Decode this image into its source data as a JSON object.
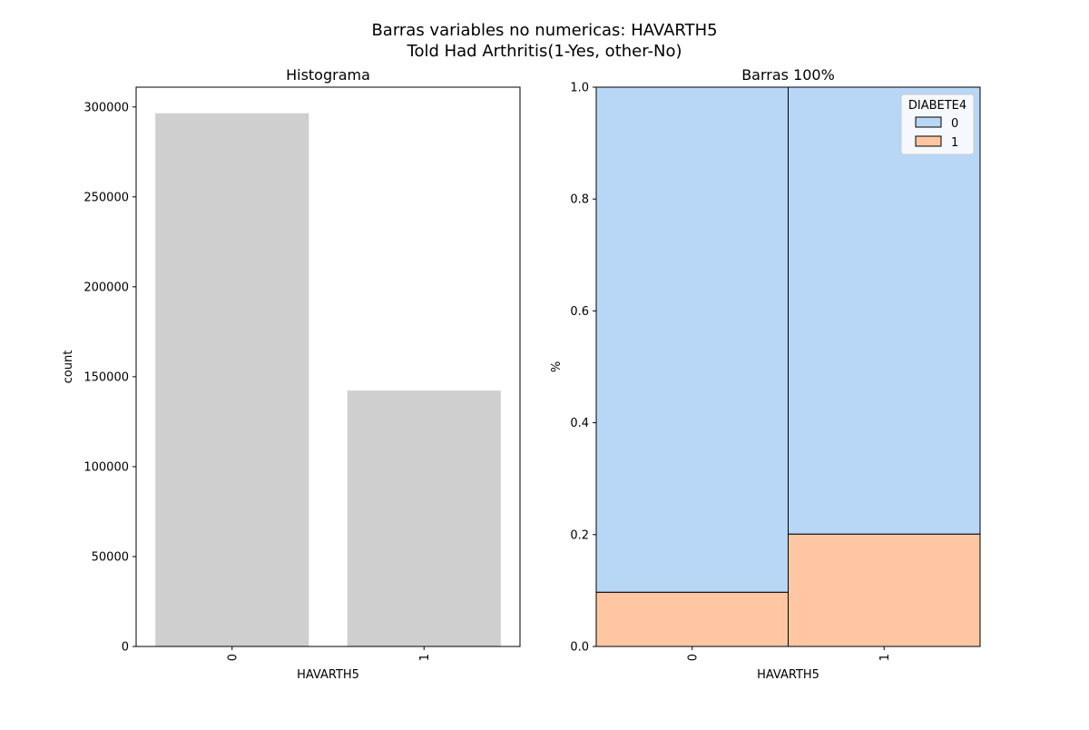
{
  "suptitle": {
    "line1": "Barras variables no numericas: HAVARTH5",
    "line2": "Told Had Arthritis(1-Yes, other-No)"
  },
  "colors": {
    "hist_bar": "#cfcfcf",
    "series_0": "#b8d6f5",
    "series_1": "#ffc6a3",
    "axis": "#000000"
  },
  "chart_data": [
    {
      "type": "bar",
      "title": "Histograma",
      "xlabel": "HAVARTH5",
      "ylabel": "count",
      "categories": [
        "0",
        "1"
      ],
      "values": [
        296500,
        142300
      ],
      "ylim": [
        0,
        311000
      ],
      "yticks": [
        0,
        50000,
        100000,
        150000,
        200000,
        250000,
        300000
      ],
      "ytick_labels": [
        "0",
        "50000",
        "100000",
        "150000",
        "200000",
        "250000",
        "300000"
      ],
      "grid": false
    },
    {
      "type": "bar",
      "stacked": "100%",
      "title": "Barras 100%",
      "xlabel": "HAVARTH5",
      "ylabel": "%",
      "categories": [
        "0",
        "1"
      ],
      "series": [
        {
          "name": "1",
          "values": [
            0.097,
            0.201
          ]
        },
        {
          "name": "0",
          "values": [
            0.903,
            0.799
          ]
        }
      ],
      "ylim": [
        0,
        1
      ],
      "yticks": [
        0,
        0.2,
        0.4,
        0.6,
        0.8,
        1.0
      ],
      "ytick_labels": [
        "0.0",
        "0.2",
        "0.4",
        "0.6",
        "0.8",
        "1.0"
      ],
      "legend": {
        "title": "DIABETE4",
        "entries": [
          "0",
          "1"
        ],
        "placement": "top-right"
      },
      "grid": false
    }
  ]
}
